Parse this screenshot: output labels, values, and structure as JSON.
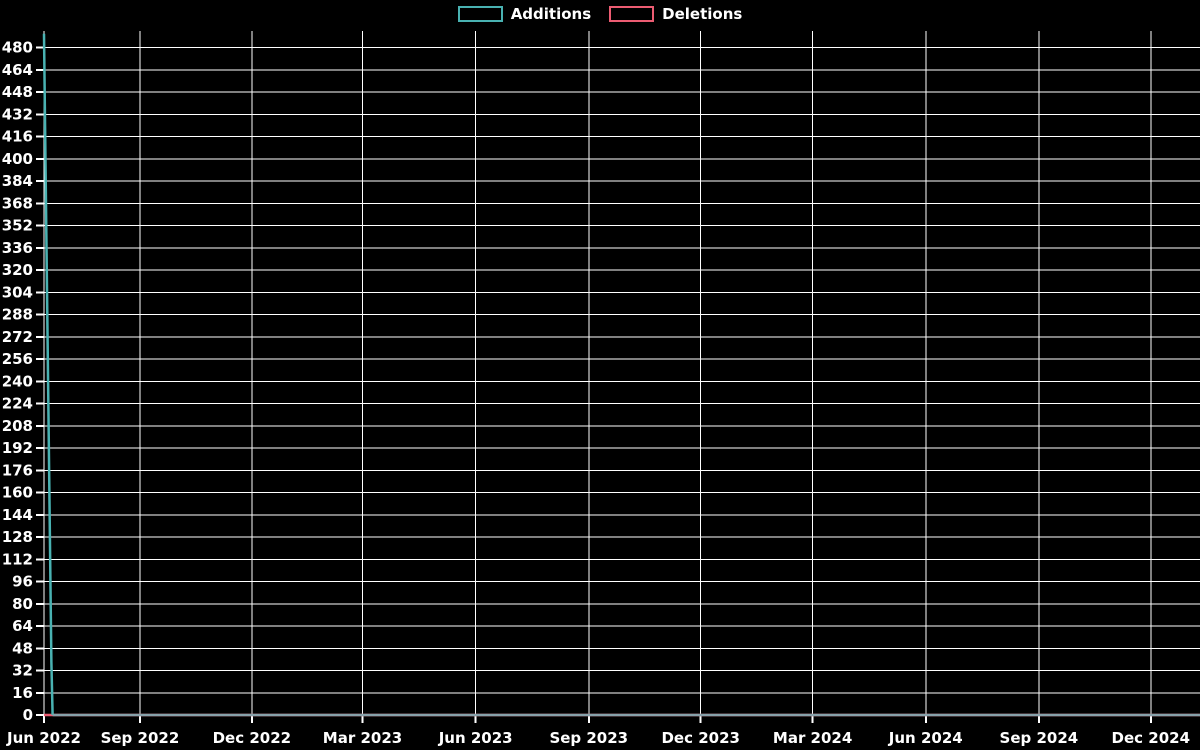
{
  "chart_data": {
    "type": "line",
    "title": "",
    "background": "#000000",
    "text_color": "#ffffff",
    "grid": true,
    "legend_position": "top-center",
    "legend": [
      {
        "label": "Additions",
        "color": "#49b2b2"
      },
      {
        "label": "Deletions",
        "color": "#ec5c72"
      }
    ],
    "x_axis": {
      "range_dates": [
        "2022-06-15",
        "2025-01-10"
      ],
      "ticks": [
        {
          "label": "Jun 2022",
          "date": "2022-06-15"
        },
        {
          "label": "Sep 2022",
          "date": "2022-09-01"
        },
        {
          "label": "Dec 2022",
          "date": "2022-12-01"
        },
        {
          "label": "Mar 2023",
          "date": "2023-03-01"
        },
        {
          "label": "Jun 2023",
          "date": "2023-06-01"
        },
        {
          "label": "Sep 2023",
          "date": "2023-09-01"
        },
        {
          "label": "Dec 2023",
          "date": "2023-12-01"
        },
        {
          "label": "Mar 2024",
          "date": "2024-03-01"
        },
        {
          "label": "Jun 2024",
          "date": "2024-06-01"
        },
        {
          "label": "Sep 2024",
          "date": "2024-09-01"
        },
        {
          "label": "Dec 2024",
          "date": "2024-12-01"
        }
      ]
    },
    "y_axis": {
      "range": [
        0,
        492
      ],
      "tick_step": 16,
      "ticks": [
        0,
        16,
        32,
        48,
        64,
        80,
        96,
        112,
        128,
        144,
        160,
        176,
        192,
        208,
        224,
        240,
        256,
        272,
        288,
        304,
        320,
        336,
        352,
        368,
        384,
        400,
        416,
        432,
        448,
        464,
        480
      ]
    },
    "series": [
      {
        "name": "Additions",
        "color": "#49b2b2",
        "points": [
          [
            "2022-06-15",
            490
          ],
          [
            "2022-06-21",
            38
          ],
          [
            "2022-06-22",
            0
          ],
          [
            "2025-01-10",
            0
          ]
        ]
      },
      {
        "name": "Deletions",
        "color": "#ec5c72",
        "points": [
          [
            "2022-06-15",
            0
          ],
          [
            "2025-01-10",
            0
          ]
        ]
      }
    ],
    "overlap_baseline_color": "#87a1aa"
  }
}
